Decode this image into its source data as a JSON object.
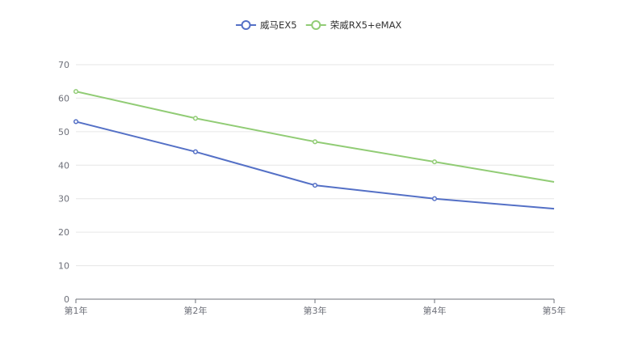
{
  "chart_data": {
    "type": "line",
    "title": "",
    "xlabel": "",
    "ylabel": "",
    "categories": [
      "第1年",
      "第2年",
      "第3年",
      "第4年",
      "第5年"
    ],
    "ylim": [
      0,
      70
    ],
    "yticks": [
      0,
      10,
      20,
      30,
      40,
      50,
      60,
      70
    ],
    "grid": true,
    "legend_position": "top-center",
    "series": [
      {
        "name": "威马EX5",
        "color": "#5470c6",
        "values": [
          53,
          44,
          34,
          30,
          27
        ],
        "markers": [
          true,
          true,
          true,
          true,
          false
        ]
      },
      {
        "name": "荣威RX5+eMAX",
        "color": "#91cc75",
        "values": [
          62,
          54,
          47,
          41,
          35
        ],
        "markers": [
          true,
          true,
          true,
          true,
          false
        ]
      }
    ]
  }
}
